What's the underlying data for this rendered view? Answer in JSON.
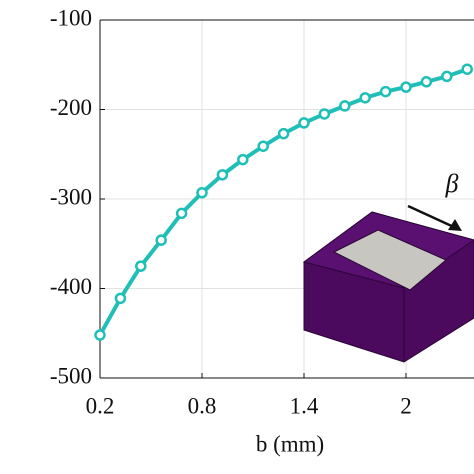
{
  "chart_data": {
    "type": "line",
    "x_label": "b (mm)",
    "annotation": "β",
    "x": [
      0.2,
      0.32,
      0.44,
      0.56,
      0.68,
      0.8,
      0.92,
      1.04,
      1.16,
      1.28,
      1.4,
      1.52,
      1.64,
      1.76,
      1.88,
      2.0,
      2.12,
      2.24,
      2.36
    ],
    "series": [
      {
        "color": "#1fbfb8",
        "values": [
          -452,
          -411,
          -375,
          -346,
          -316,
          -293,
          -273,
          -256,
          -241,
          -227,
          -215,
          -205,
          -196,
          -187,
          -180,
          -175,
          -169,
          -163,
          -155
        ]
      }
    ],
    "xlim": [
      0.2,
      2.4
    ],
    "xticks": [
      0.2,
      0.8,
      1.4,
      2
    ],
    "ylim": [
      -500,
      -100
    ],
    "yticks": [
      -500,
      -400,
      -300,
      -200,
      -100
    ],
    "grid": true
  }
}
